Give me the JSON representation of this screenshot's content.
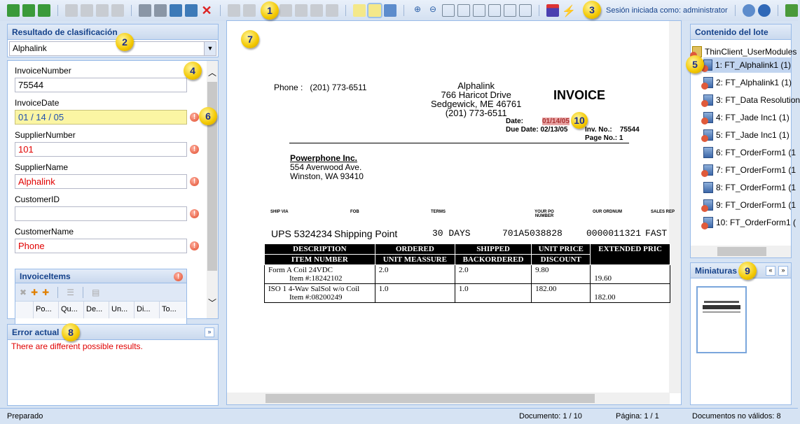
{
  "toolbar": {
    "session_label": "Sesión iniciada como: administrator",
    "icons": [
      "batch-open-icon",
      "batch-suspend-icon",
      "batch-close-icon",
      "first-batch-icon",
      "prev-batch-icon",
      "next-batch-icon",
      "last-batch-icon",
      "first-doc-icon",
      "prev-doc-icon",
      "next-doc-icon",
      "last-doc-icon",
      "delete-icon",
      "new-doc-icon",
      "split-doc-icon",
      "add-note-icon",
      "note-icon",
      "search-doc-icon",
      "zoom-in-icon",
      "zoom-out-icon",
      "fit-page-icon",
      "fit-width-icon",
      "fit-height-icon",
      "rotate-left-icon",
      "rotate-right-icon",
      "rotate-icon",
      "filter-icon",
      "lightning-icon",
      "help-icon",
      "info-icon",
      "exit-icon"
    ]
  },
  "badges": [
    "1",
    "2",
    "3",
    "4",
    "5",
    "6",
    "7",
    "8",
    "9",
    "10"
  ],
  "classification": {
    "title": "Resultado de clasificación",
    "value": "Alphalink"
  },
  "fields": [
    {
      "label": "InvoiceNumber",
      "value": "75544",
      "error": false
    },
    {
      "label": "InvoiceDate",
      "value": "01 / 14 / 05",
      "error": true
    },
    {
      "label": "SupplierNumber",
      "value": "101",
      "error": true
    },
    {
      "label": "SupplierName",
      "value": "Alphalink",
      "error": true
    },
    {
      "label": "CustomerID",
      "value": "",
      "error": true
    },
    {
      "label": "CustomerName",
      "value": "Phone",
      "error": true
    }
  ],
  "invoice_items": {
    "title": "InvoiceItems",
    "columns": [
      "Po...",
      "Qu...",
      "De...",
      "Un...",
      "Di...",
      "To..."
    ]
  },
  "error_panel": {
    "title": "Error actual",
    "message": "There are different possible results."
  },
  "document": {
    "phone_label": "Phone :",
    "phone": "(201) 773-6511",
    "supplier": [
      "Alphalink",
      "766 Haricot Drive",
      "Sedgewick, ME 46761",
      "(201) 773-6511"
    ],
    "title": "INVOICE",
    "date_label": "Date:",
    "date": "01/14/05",
    "due_label": "Due Date:",
    "due": "02/13/05",
    "inv_label": "Inv. No.:",
    "inv": "75544",
    "page_label": "Page No.:",
    "page": "1",
    "customer": [
      "Powerphone Inc.",
      "554 Averwood Ave.",
      "Winston, WA 93410"
    ],
    "ship_headers": [
      "SHIP VIA",
      "FOB",
      "TERMS",
      "YOUR PO NUMBER",
      "OUR ORDNUM",
      "SALES REP"
    ],
    "ship_values": [
      "UPS  5324234",
      "Shipping Point",
      "30 DAYS",
      "701A5038828",
      "0000011321",
      "FAST"
    ],
    "table_head1": [
      "DESCRIPTION",
      "ORDERED",
      "SHIPPED",
      "UNIT PRICE",
      "EXTENDED PRIC"
    ],
    "table_head2": [
      "ITEM NUMBER",
      "UNIT MEASSURE",
      "BACKORDERED",
      "DISCOUNT"
    ],
    "rows": [
      {
        "desc": "Form A Coil 24VDC",
        "item": "Item #:18242102",
        "ordered": "2.0",
        "shipped": "2.0",
        "price": "9.80",
        "ext": "19.60"
      },
      {
        "desc": "ISO 1 4-Wav SalSol w/o Coil",
        "item": "Item #:08200249",
        "ordered": "1.0",
        "shipped": "1.0",
        "price": "182.00",
        "ext": "182.00"
      }
    ]
  },
  "batch": {
    "title": "Contenido del lote",
    "root": "ThinClient_UserModules",
    "items": [
      {
        "label": "1: FT_Alphalink1 (1)",
        "error": true
      },
      {
        "label": "2: FT_Alphalink1 (1)",
        "error": true
      },
      {
        "label": "3: FT_Data Resolution",
        "error": true
      },
      {
        "label": "4: FT_Jade Inc1 (1)",
        "error": true
      },
      {
        "label": "5: FT_Jade Inc1 (1)",
        "error": true
      },
      {
        "label": "6: FT_OrderForm1 (1",
        "error": false
      },
      {
        "label": "7: FT_OrderForm1 (1",
        "error": true
      },
      {
        "label": "8: FT_OrderForm1 (1",
        "error": false
      },
      {
        "label": "9: FT_OrderForm1 (1",
        "error": true
      },
      {
        "label": "10: FT_OrderForm1 (",
        "error": true
      }
    ]
  },
  "thumbnails": {
    "title": "Miniaturas"
  },
  "status": {
    "ready": "Preparado",
    "document": "Documento: 1 / 10",
    "page": "Página: 1 / 1",
    "invalid": "Documentos no válidos: 8"
  }
}
